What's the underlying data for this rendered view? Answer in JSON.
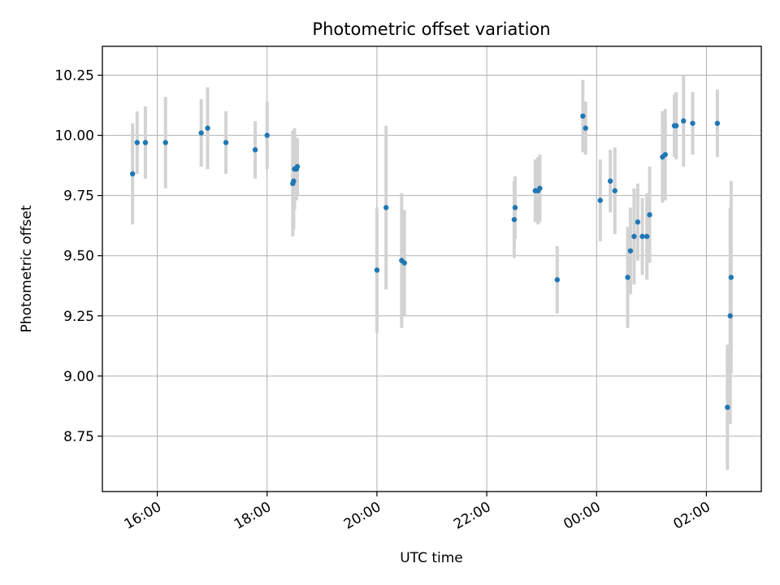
{
  "chart_data": {
    "type": "scatter",
    "title": "Photometric offset variation",
    "xlabel": "UTC time",
    "ylabel": "Photometric offset",
    "x_unit": "UTC time (hours since 00:00 of the first day)",
    "xlim": [
      "15:00",
      "03:00"
    ],
    "ylim": [
      8.52,
      10.37
    ],
    "x_ticks": [
      "16:00",
      "18:00",
      "20:00",
      "22:00",
      "00:00",
      "02:00"
    ],
    "y_ticks": [
      "8.75",
      "9.00",
      "9.25",
      "9.50",
      "9.75",
      "10.00",
      "10.25"
    ],
    "grid": true,
    "colors": {
      "point": "#1f77b4",
      "errorbar": "#d3d3d3",
      "grid": "#b0b0b0"
    },
    "series": [
      {
        "x": [
          "15:33",
          "15:38",
          "15:47",
          "16:09",
          "16:48",
          "16:55",
          "17:15",
          "17:47",
          "18:00",
          "18:28",
          "18:29",
          "18:30",
          "18:32",
          "18:33",
          "20:00",
          "20:10",
          "20:27",
          "20:30",
          "22:30",
          "22:31",
          "22:53",
          "22:56",
          "22:58",
          "23:17",
          "23:45",
          "23:48",
          "00:04",
          "00:15",
          "00:20",
          "00:34",
          "00:37",
          "00:41",
          "00:45",
          "00:50",
          "00:55",
          "00:58",
          "01:12",
          "01:15",
          "01:25",
          "01:27",
          "01:35",
          "01:45",
          "02:12",
          "02:23",
          "02:26",
          "02:27"
        ],
        "y": [
          9.84,
          9.97,
          9.97,
          9.97,
          10.01,
          10.03,
          9.97,
          9.94,
          10.0,
          9.8,
          9.81,
          9.86,
          9.86,
          9.87,
          9.44,
          9.7,
          9.48,
          9.47,
          9.65,
          9.7,
          9.77,
          9.77,
          9.78,
          9.4,
          10.08,
          10.03,
          9.73,
          9.81,
          9.77,
          9.41,
          9.52,
          9.58,
          9.64,
          9.58,
          9.58,
          9.67,
          9.91,
          9.92,
          10.04,
          10.04,
          10.06,
          10.05,
          10.05,
          8.87,
          9.25,
          9.41
        ],
        "yerr": [
          0.21,
          0.13,
          0.15,
          0.19,
          0.14,
          0.17,
          0.13,
          0.12,
          0.14,
          0.22,
          0.2,
          0.17,
          0.13,
          0.12,
          0.26,
          0.34,
          0.28,
          0.22,
          0.16,
          0.13,
          0.13,
          0.14,
          0.14,
          0.14,
          0.15,
          0.11,
          0.17,
          0.13,
          0.18,
          0.21,
          0.18,
          0.2,
          0.16,
          0.16,
          0.18,
          0.2,
          0.19,
          0.19,
          0.13,
          0.14,
          0.19,
          0.13,
          0.14,
          0.26,
          0.45,
          0.4
        ]
      }
    ]
  }
}
